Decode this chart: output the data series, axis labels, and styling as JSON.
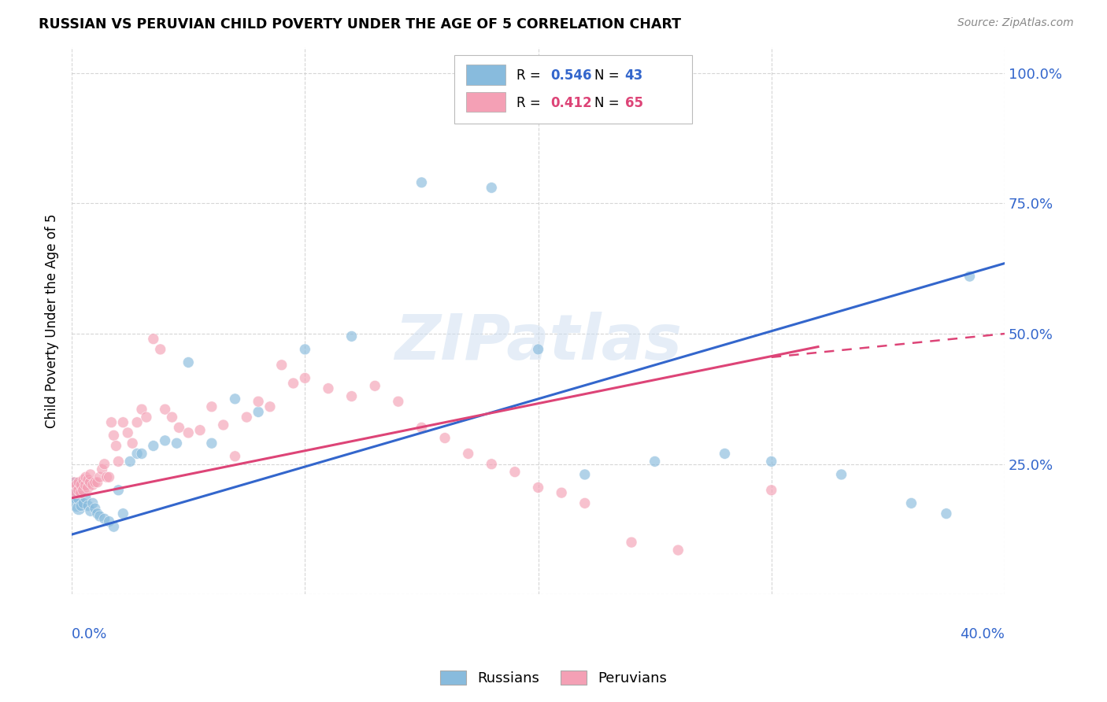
{
  "title": "RUSSIAN VS PERUVIAN CHILD POVERTY UNDER THE AGE OF 5 CORRELATION CHART",
  "source": "Source: ZipAtlas.com",
  "ylabel": "Child Poverty Under the Age of 5",
  "xlim": [
    0.0,
    0.4
  ],
  "ylim": [
    0.0,
    1.05
  ],
  "russian_R": "0.546",
  "russian_N": "43",
  "peruvian_R": "0.412",
  "peruvian_N": "65",
  "blue_color": "#88bbdd",
  "pink_color": "#f4a0b5",
  "blue_line_color": "#3366cc",
  "pink_line_color": "#dd4477",
  "watermark": "ZIPatlas",
  "ru_x": [
    0.001,
    0.001,
    0.002,
    0.002,
    0.003,
    0.003,
    0.004,
    0.005,
    0.006,
    0.007,
    0.008,
    0.009,
    0.01,
    0.011,
    0.012,
    0.014,
    0.016,
    0.018,
    0.02,
    0.022,
    0.025,
    0.028,
    0.03,
    0.035,
    0.04,
    0.045,
    0.05,
    0.06,
    0.07,
    0.08,
    0.1,
    0.12,
    0.15,
    0.18,
    0.2,
    0.22,
    0.25,
    0.28,
    0.3,
    0.33,
    0.36,
    0.375,
    0.385
  ],
  "ru_y": [
    0.195,
    0.21,
    0.175,
    0.2,
    0.165,
    0.185,
    0.17,
    0.175,
    0.185,
    0.17,
    0.16,
    0.175,
    0.165,
    0.155,
    0.15,
    0.145,
    0.14,
    0.13,
    0.2,
    0.155,
    0.255,
    0.27,
    0.27,
    0.285,
    0.295,
    0.29,
    0.445,
    0.29,
    0.375,
    0.35,
    0.47,
    0.495,
    0.79,
    0.78,
    0.47,
    0.23,
    0.255,
    0.27,
    0.255,
    0.23,
    0.175,
    0.155,
    0.61
  ],
  "ru_sizes": [
    350,
    200,
    250,
    180,
    150,
    130,
    100,
    100,
    100,
    100,
    100,
    100,
    100,
    100,
    100,
    100,
    100,
    100,
    100,
    100,
    100,
    100,
    100,
    100,
    100,
    100,
    100,
    100,
    100,
    100,
    100,
    100,
    100,
    100,
    100,
    100,
    100,
    100,
    100,
    100,
    100,
    100,
    100
  ],
  "pe_x": [
    0.001,
    0.001,
    0.002,
    0.002,
    0.003,
    0.003,
    0.004,
    0.004,
    0.005,
    0.005,
    0.006,
    0.006,
    0.007,
    0.007,
    0.008,
    0.008,
    0.009,
    0.01,
    0.011,
    0.012,
    0.013,
    0.014,
    0.015,
    0.016,
    0.017,
    0.018,
    0.019,
    0.02,
    0.022,
    0.024,
    0.026,
    0.028,
    0.03,
    0.032,
    0.035,
    0.038,
    0.04,
    0.043,
    0.046,
    0.05,
    0.055,
    0.06,
    0.065,
    0.07,
    0.075,
    0.08,
    0.085,
    0.09,
    0.095,
    0.1,
    0.11,
    0.12,
    0.13,
    0.14,
    0.15,
    0.16,
    0.17,
    0.18,
    0.19,
    0.2,
    0.21,
    0.22,
    0.24,
    0.26,
    0.3
  ],
  "pe_y": [
    0.2,
    0.215,
    0.195,
    0.21,
    0.2,
    0.215,
    0.195,
    0.21,
    0.2,
    0.22,
    0.21,
    0.225,
    0.205,
    0.22,
    0.215,
    0.23,
    0.21,
    0.215,
    0.215,
    0.225,
    0.24,
    0.25,
    0.225,
    0.225,
    0.33,
    0.305,
    0.285,
    0.255,
    0.33,
    0.31,
    0.29,
    0.33,
    0.355,
    0.34,
    0.49,
    0.47,
    0.355,
    0.34,
    0.32,
    0.31,
    0.315,
    0.36,
    0.325,
    0.265,
    0.34,
    0.37,
    0.36,
    0.44,
    0.405,
    0.415,
    0.395,
    0.38,
    0.4,
    0.37,
    0.32,
    0.3,
    0.27,
    0.25,
    0.235,
    0.205,
    0.195,
    0.175,
    0.1,
    0.085,
    0.2
  ],
  "pe_sizes": [
    130,
    100,
    120,
    100,
    110,
    100,
    110,
    100,
    110,
    100,
    110,
    100,
    110,
    100,
    110,
    100,
    100,
    100,
    100,
    100,
    100,
    100,
    100,
    100,
    100,
    100,
    100,
    100,
    100,
    100,
    100,
    100,
    100,
    100,
    100,
    100,
    100,
    100,
    100,
    100,
    100,
    100,
    100,
    100,
    100,
    100,
    100,
    100,
    100,
    100,
    100,
    100,
    100,
    100,
    100,
    100,
    100,
    100,
    100,
    100,
    100,
    100,
    100,
    100,
    100
  ],
  "ru_line": [
    [
      0.0,
      0.4
    ],
    [
      0.115,
      0.635
    ]
  ],
  "pe_line_solid": [
    [
      0.0,
      0.32
    ],
    [
      0.185,
      0.475
    ]
  ],
  "pe_line_dashed": [
    [
      0.3,
      0.4
    ],
    [
      0.455,
      0.5
    ]
  ]
}
